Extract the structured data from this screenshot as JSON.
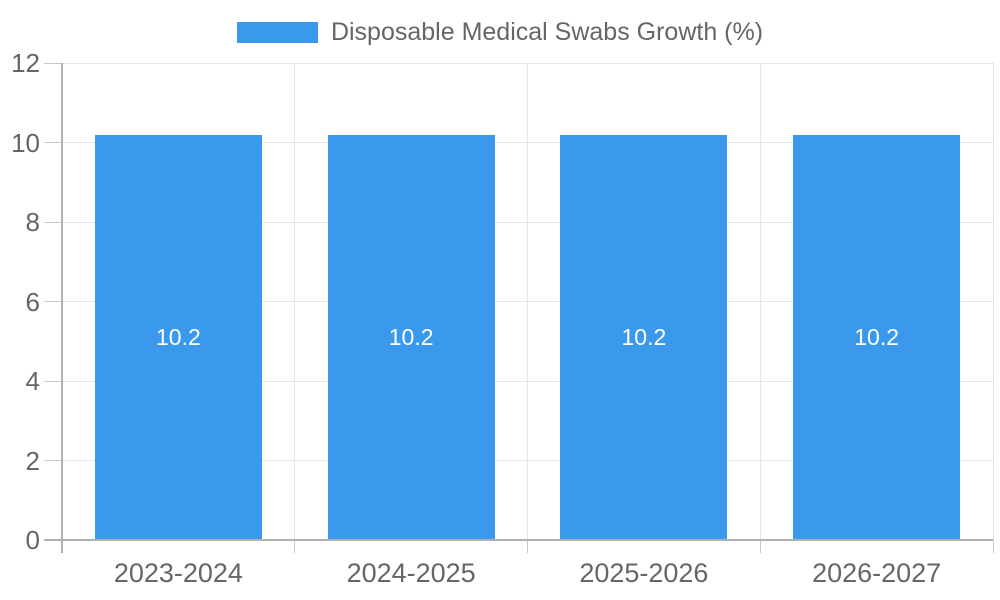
{
  "chart_data": {
    "type": "bar",
    "title": "Disposable Medical Swabs Growth (%)",
    "legend_label": "Disposable Medical Swabs Growth (%)",
    "legend_position": "top",
    "categories": [
      "2023-2024",
      "2024-2025",
      "2025-2026",
      "2026-2027"
    ],
    "values": [
      10.2,
      10.2,
      10.2,
      10.2
    ],
    "xlabel": "",
    "ylabel": "",
    "ylim": [
      0,
      12
    ],
    "yticks": [
      0,
      2,
      4,
      6,
      8,
      10,
      12
    ],
    "grid": true,
    "colors": {
      "bar": "#3A99EC",
      "bar_label_text": "#FFFFFF",
      "axis_text": "#666666",
      "legend_text": "#666666",
      "gridline": "#E6E6E6",
      "tick": "#C9C9C9",
      "axis_line": "#B0B0B0",
      "background": "#FFFFFF"
    }
  }
}
